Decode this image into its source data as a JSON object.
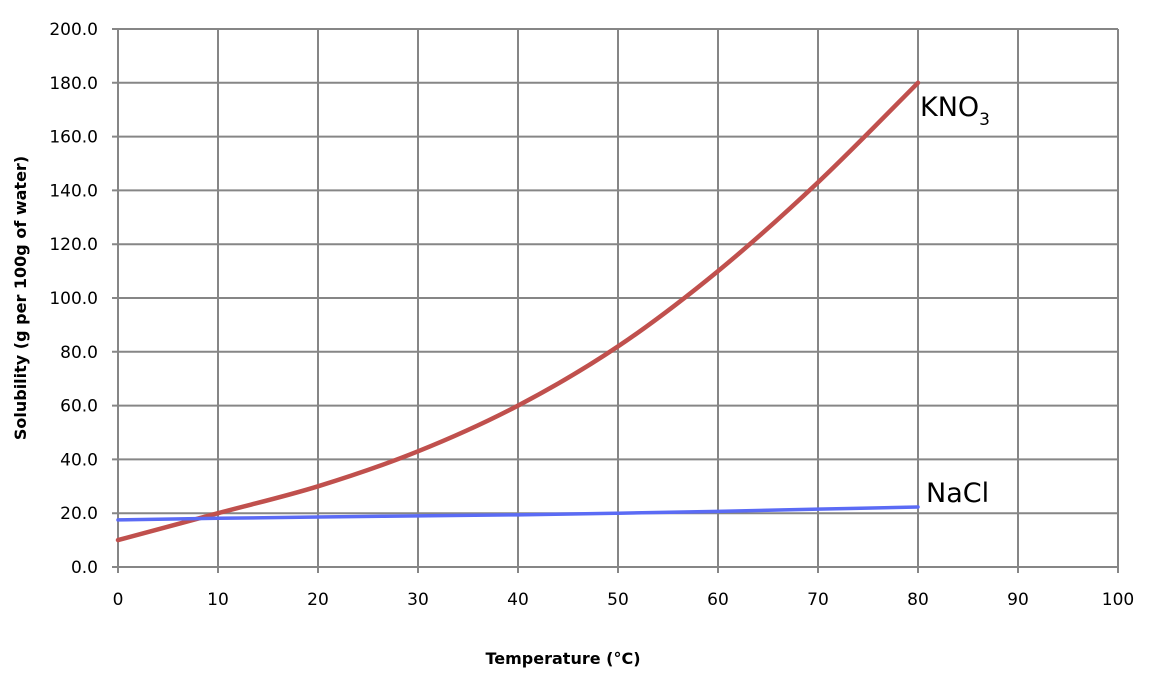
{
  "chart_data": {
    "type": "line",
    "title": "",
    "xlabel": "Temperature (°C)",
    "ylabel": "Solubility (g per 100g of water)",
    "xlim": [
      0,
      100
    ],
    "ylim": [
      0,
      200
    ],
    "x_ticks": [
      "0",
      "10",
      "20",
      "30",
      "40",
      "50",
      "60",
      "70",
      "80",
      "90",
      "100"
    ],
    "y_ticks": [
      "0.0",
      "20.0",
      "40.0",
      "60.0",
      "80.0",
      "100.0",
      "120.0",
      "140.0",
      "160.0",
      "180.0",
      "200.0"
    ],
    "grid": true,
    "legend": "none (series labeled at line ends)",
    "series": [
      {
        "name": "KNO3",
        "label_main": "KNO",
        "label_sub": "3",
        "color": "#c0504d",
        "x": [
          0,
          10,
          20,
          30,
          40,
          50,
          60,
          70,
          80
        ],
        "y": [
          10,
          20,
          30,
          43,
          60,
          82,
          110,
          143,
          180
        ]
      },
      {
        "name": "NaCl",
        "label_main": "NaCl",
        "color": "#5b6bf5",
        "x": [
          0,
          10,
          20,
          30,
          40,
          50,
          60,
          70,
          80
        ],
        "y": [
          17.5,
          18.1,
          18.6,
          19.0,
          19.4,
          20.0,
          20.7,
          21.5,
          22.3
        ]
      }
    ]
  }
}
